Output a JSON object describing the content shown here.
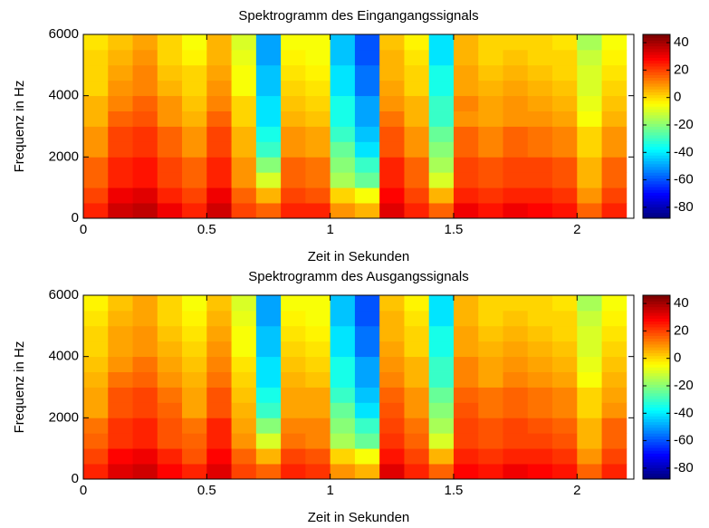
{
  "chart_data": [
    {
      "type": "heatmap",
      "title": "Spektrogramm des Eingangangssignals",
      "xlabel": "Zeit in Sekunden",
      "ylabel": "Frequenz in Hz",
      "x": [
        0.05,
        0.15,
        0.25,
        0.35,
        0.45,
        0.55,
        0.65,
        0.75,
        0.85,
        0.95,
        1.05,
        1.15,
        1.25,
        1.35,
        1.45,
        1.55,
        1.65,
        1.75,
        1.85,
        1.95,
        2.05,
        2.15
      ],
      "y": [
        250,
        750,
        1250,
        1750,
        2250,
        2750,
        3250,
        3750,
        4250,
        4750,
        5250,
        5750
      ],
      "z": [
        [
          25,
          35,
          37,
          30,
          25,
          35,
          20,
          15,
          25,
          23,
          10,
          5,
          33,
          25,
          15,
          30,
          27,
          30,
          29,
          27,
          15,
          25
        ],
        [
          20,
          30,
          32,
          25,
          20,
          30,
          15,
          5,
          20,
          18,
          0,
          -5,
          28,
          20,
          5,
          25,
          22,
          25,
          24,
          22,
          10,
          20
        ],
        [
          15,
          25,
          27,
          20,
          15,
          25,
          10,
          -10,
          15,
          13,
          -15,
          -25,
          23,
          15,
          -10,
          20,
          17,
          20,
          19,
          17,
          5,
          15
        ],
        [
          15,
          25,
          27,
          20,
          15,
          25,
          10,
          -20,
          15,
          13,
          -20,
          -30,
          23,
          15,
          -15,
          20,
          17,
          20,
          19,
          17,
          5,
          15
        ],
        [
          10,
          20,
          22,
          15,
          10,
          20,
          5,
          -30,
          10,
          8,
          -25,
          -40,
          18,
          10,
          -20,
          15,
          12,
          15,
          14,
          12,
          0,
          10
        ],
        [
          10,
          20,
          22,
          15,
          10,
          20,
          5,
          -35,
          10,
          8,
          -30,
          -45,
          18,
          10,
          -25,
          15,
          12,
          15,
          14,
          12,
          0,
          10
        ],
        [
          5,
          15,
          17,
          10,
          5,
          15,
          0,
          -40,
          5,
          3,
          -35,
          -50,
          13,
          5,
          -30,
          10,
          7,
          10,
          9,
          7,
          -5,
          5
        ],
        [
          5,
          12,
          15,
          10,
          3,
          12,
          0,
          -40,
          3,
          0,
          -35,
          -50,
          10,
          5,
          -30,
          12,
          8,
          10,
          7,
          5,
          -8,
          3
        ],
        [
          2,
          10,
          12,
          5,
          0,
          10,
          -5,
          -45,
          0,
          -2,
          -40,
          -55,
          8,
          2,
          -35,
          8,
          5,
          8,
          5,
          3,
          -10,
          0
        ],
        [
          0,
          8,
          12,
          3,
          0,
          8,
          -5,
          -45,
          -2,
          -3,
          -40,
          -55,
          5,
          0,
          -35,
          7,
          4,
          5,
          4,
          2,
          -10,
          -2
        ],
        [
          0,
          5,
          10,
          2,
          -3,
          5,
          -8,
          -50,
          -3,
          -5,
          -45,
          -60,
          5,
          -2,
          -40,
          5,
          2,
          3,
          2,
          0,
          -12,
          -3
        ],
        [
          -2,
          3,
          8,
          0,
          -5,
          5,
          -10,
          -50,
          -5,
          -5,
          -45,
          -60,
          3,
          -3,
          -40,
          5,
          0,
          2,
          0,
          -2,
          -15,
          -5
        ]
      ],
      "xlim": [
        0,
        2.23
      ],
      "ylim": [
        0,
        6000
      ],
      "xticks": [
        0,
        0.5,
        1,
        1.5,
        2
      ],
      "yticks": [
        0,
        2000,
        4000,
        6000
      ],
      "colormap": "jet",
      "clim": [
        -88,
        46
      ],
      "cticks": [
        40,
        20,
        0,
        -20,
        -40,
        -60,
        -80
      ]
    },
    {
      "type": "heatmap",
      "title": "Spektrogramm des Ausgangssignals",
      "xlabel": "Zeit in Sekunden",
      "ylabel": "Frequenz in Hz",
      "x": [
        0.05,
        0.15,
        0.25,
        0.35,
        0.45,
        0.55,
        0.65,
        0.75,
        0.85,
        0.95,
        1.05,
        1.15,
        1.25,
        1.35,
        1.45,
        1.55,
        1.65,
        1.75,
        1.85,
        1.95,
        2.05,
        2.15
      ],
      "y": [
        250,
        750,
        1250,
        1750,
        2250,
        2750,
        3250,
        3750,
        4250,
        4750,
        5250,
        5750
      ],
      "z": [
        [
          25,
          33,
          35,
          28,
          25,
          33,
          20,
          15,
          25,
          22,
          10,
          5,
          32,
          23,
          15,
          28,
          27,
          30,
          28,
          26,
          15,
          25
        ],
        [
          20,
          28,
          30,
          25,
          18,
          28,
          15,
          5,
          20,
          17,
          0,
          -5,
          27,
          20,
          5,
          24,
          22,
          25,
          23,
          22,
          10,
          20
        ],
        [
          15,
          22,
          25,
          18,
          15,
          23,
          10,
          -10,
          13,
          12,
          -15,
          -25,
          22,
          15,
          -10,
          20,
          18,
          20,
          19,
          17,
          5,
          15
        ],
        [
          13,
          22,
          25,
          18,
          13,
          23,
          8,
          -20,
          12,
          12,
          -20,
          -30,
          20,
          14,
          -15,
          20,
          17,
          20,
          18,
          16,
          5,
          15
        ],
        [
          8,
          18,
          20,
          15,
          8,
          18,
          5,
          -30,
          8,
          7,
          -25,
          -40,
          17,
          10,
          -20,
          17,
          14,
          15,
          14,
          12,
          0,
          10
        ],
        [
          8,
          18,
          20,
          13,
          8,
          18,
          3,
          -35,
          8,
          7,
          -30,
          -45,
          15,
          10,
          -25,
          15,
          13,
          15,
          14,
          12,
          0,
          8
        ],
        [
          5,
          13,
          15,
          10,
          5,
          13,
          0,
          -40,
          5,
          3,
          -35,
          -50,
          12,
          5,
          -30,
          12,
          8,
          12,
          9,
          7,
          -5,
          5
        ],
        [
          3,
          10,
          13,
          8,
          3,
          12,
          -2,
          -40,
          3,
          0,
          -35,
          -50,
          10,
          5,
          -30,
          12,
          8,
          10,
          7,
          5,
          -8,
          3
        ],
        [
          0,
          8,
          10,
          5,
          0,
          10,
          -5,
          -45,
          0,
          -2,
          -40,
          -55,
          7,
          2,
          -35,
          8,
          5,
          8,
          5,
          3,
          -10,
          0
        ],
        [
          0,
          7,
          10,
          3,
          -2,
          8,
          -5,
          -45,
          -2,
          -3,
          -40,
          -55,
          5,
          0,
          -35,
          7,
          4,
          5,
          4,
          2,
          -10,
          -2
        ],
        [
          -2,
          5,
          8,
          2,
          -3,
          5,
          -8,
          -50,
          -3,
          -5,
          -45,
          -60,
          5,
          -2,
          -40,
          5,
          2,
          3,
          2,
          0,
          -12,
          -3
        ],
        [
          -3,
          3,
          7,
          0,
          -5,
          3,
          -10,
          -50,
          -5,
          -5,
          -45,
          -60,
          3,
          -3,
          -40,
          5,
          0,
          2,
          0,
          -2,
          -15,
          -5
        ]
      ],
      "xlim": [
        0,
        2.23
      ],
      "ylim": [
        0,
        6000
      ],
      "xticks": [
        0,
        0.5,
        1,
        1.5,
        2
      ],
      "yticks": [
        0,
        2000,
        4000,
        6000
      ],
      "colormap": "jet",
      "clim": [
        -88,
        46
      ],
      "cticks": [
        40,
        20,
        0,
        -20,
        -40,
        -60,
        -80
      ]
    }
  ]
}
